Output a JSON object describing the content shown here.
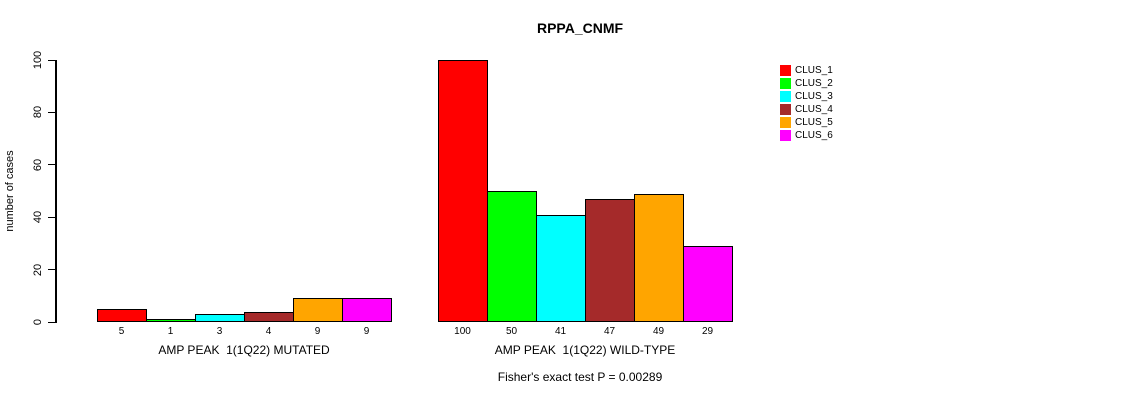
{
  "title": "RPPA_CNMF",
  "y_axis": {
    "label": "number of cases",
    "ticks": [
      0,
      20,
      40,
      60,
      80,
      100
    ]
  },
  "footer": "Fisher's exact test P = 0.00289",
  "legend": {
    "items": [
      {
        "label": "CLUS_1",
        "color": "#FF0000"
      },
      {
        "label": "CLUS_2",
        "color": "#00FF00"
      },
      {
        "label": "CLUS_3",
        "color": "#00FFFF"
      },
      {
        "label": "CLUS_4",
        "color": "#A52A2A"
      },
      {
        "label": "CLUS_5",
        "color": "#FFA500"
      },
      {
        "label": "CLUS_6",
        "color": "#FF00FF"
      }
    ]
  },
  "chart_data": {
    "type": "bar",
    "title": "RPPA_CNMF",
    "xlabel": "",
    "ylabel": "number of cases",
    "ylim": [
      0,
      100
    ],
    "yticks": [
      0,
      20,
      40,
      60,
      80,
      100
    ],
    "grid": false,
    "legend_position": "right",
    "categories": [
      "AMP PEAK  1(1Q22) MUTATED",
      "AMP PEAK  1(1Q22) WILD-TYPE"
    ],
    "series": [
      {
        "name": "CLUS_1",
        "color": "#FF0000",
        "values": [
          5,
          100
        ]
      },
      {
        "name": "CLUS_2",
        "color": "#00FF00",
        "values": [
          1,
          50
        ]
      },
      {
        "name": "CLUS_3",
        "color": "#00FFFF",
        "values": [
          3,
          41
        ]
      },
      {
        "name": "CLUS_4",
        "color": "#A52A2A",
        "values": [
          4,
          47
        ]
      },
      {
        "name": "CLUS_5",
        "color": "#FFA500",
        "values": [
          9,
          49
        ]
      },
      {
        "name": "CLUS_6",
        "color": "#FF00FF",
        "values": [
          9,
          29
        ]
      }
    ],
    "bar_value_labels": [
      [
        5,
        1,
        3,
        4,
        9,
        9
      ],
      [
        100,
        50,
        41,
        47,
        49,
        29
      ]
    ],
    "annotation": "Fisher's exact test P = 0.00289"
  }
}
